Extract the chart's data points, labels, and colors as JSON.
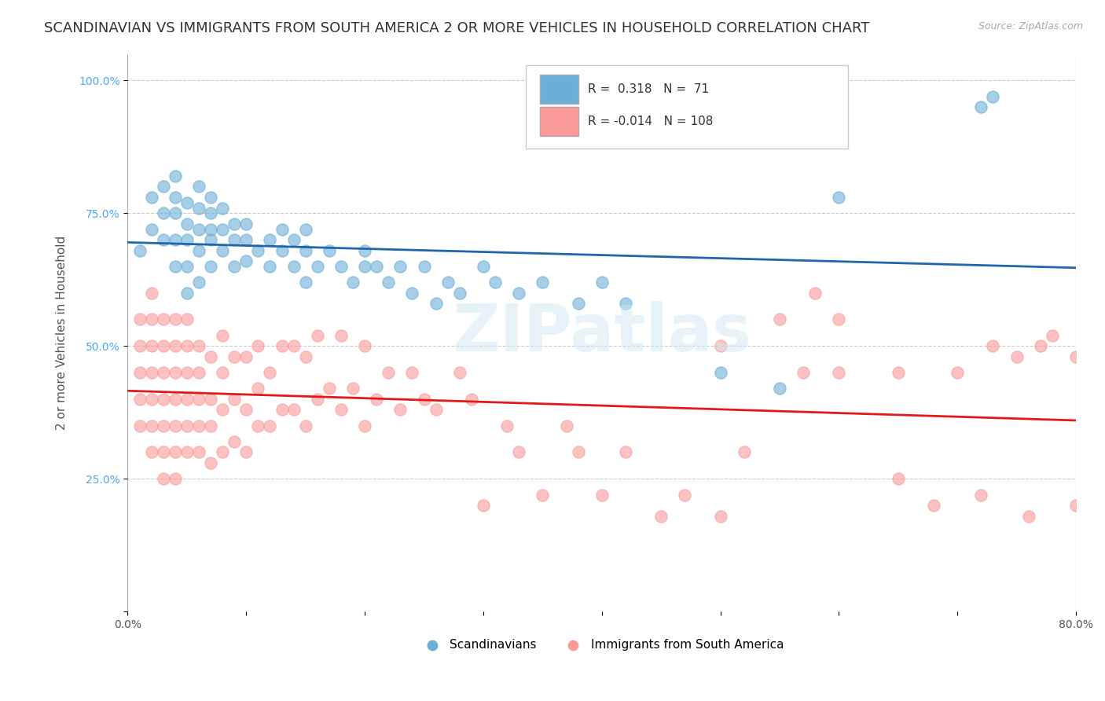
{
  "title": "SCANDINAVIAN VS IMMIGRANTS FROM SOUTH AMERICA 2 OR MORE VEHICLES IN HOUSEHOLD CORRELATION CHART",
  "source": "Source: ZipAtlas.com",
  "ylabel": "2 or more Vehicles in Household",
  "x_min": 0.0,
  "x_max": 0.8,
  "y_min": 0.0,
  "y_max": 1.05,
  "y_ticks": [
    0.0,
    0.25,
    0.5,
    0.75,
    1.0
  ],
  "y_tick_labels": [
    "",
    "25.0%",
    "50.0%",
    "75.0%",
    "100.0%"
  ],
  "x_ticks": [
    0.0,
    0.1,
    0.2,
    0.3,
    0.4,
    0.5,
    0.6,
    0.7,
    0.8
  ],
  "x_tick_labels": [
    "0.0%",
    "",
    "",
    "",
    "",
    "",
    "",
    "",
    "80.0%"
  ],
  "blue_color": "#6baed6",
  "pink_color": "#fb9a99",
  "blue_line_color": "#2166ac",
  "pink_line_color": "#e31a1c",
  "R_blue": 0.318,
  "N_blue": 71,
  "R_pink": -0.014,
  "N_pink": 108,
  "legend_label_blue": "Scandinavians",
  "legend_label_pink": "Immigrants from South America",
  "watermark": "ZIPatlas",
  "background_color": "#ffffff",
  "grid_color": "#cccccc",
  "title_fontsize": 13,
  "axis_label_fontsize": 11,
  "tick_fontsize": 10,
  "blue_scatter": {
    "x": [
      0.01,
      0.02,
      0.02,
      0.03,
      0.03,
      0.03,
      0.04,
      0.04,
      0.04,
      0.04,
      0.04,
      0.05,
      0.05,
      0.05,
      0.05,
      0.05,
      0.06,
      0.06,
      0.06,
      0.06,
      0.06,
      0.07,
      0.07,
      0.07,
      0.07,
      0.07,
      0.08,
      0.08,
      0.08,
      0.09,
      0.09,
      0.09,
      0.1,
      0.1,
      0.1,
      0.11,
      0.12,
      0.12,
      0.13,
      0.13,
      0.14,
      0.14,
      0.15,
      0.15,
      0.15,
      0.16,
      0.17,
      0.18,
      0.19,
      0.2,
      0.2,
      0.21,
      0.22,
      0.23,
      0.24,
      0.25,
      0.26,
      0.27,
      0.28,
      0.3,
      0.31,
      0.33,
      0.35,
      0.38,
      0.4,
      0.42,
      0.5,
      0.55,
      0.6,
      0.72,
      0.73
    ],
    "y": [
      0.68,
      0.72,
      0.78,
      0.7,
      0.75,
      0.8,
      0.65,
      0.7,
      0.75,
      0.78,
      0.82,
      0.6,
      0.65,
      0.7,
      0.73,
      0.77,
      0.62,
      0.68,
      0.72,
      0.76,
      0.8,
      0.65,
      0.7,
      0.72,
      0.75,
      0.78,
      0.68,
      0.72,
      0.76,
      0.65,
      0.7,
      0.73,
      0.66,
      0.7,
      0.73,
      0.68,
      0.65,
      0.7,
      0.68,
      0.72,
      0.65,
      0.7,
      0.62,
      0.68,
      0.72,
      0.65,
      0.68,
      0.65,
      0.62,
      0.65,
      0.68,
      0.65,
      0.62,
      0.65,
      0.6,
      0.65,
      0.58,
      0.62,
      0.6,
      0.65,
      0.62,
      0.6,
      0.62,
      0.58,
      0.62,
      0.58,
      0.45,
      0.42,
      0.78,
      0.95,
      0.97
    ]
  },
  "pink_scatter": {
    "x": [
      0.01,
      0.01,
      0.01,
      0.01,
      0.01,
      0.02,
      0.02,
      0.02,
      0.02,
      0.02,
      0.02,
      0.02,
      0.03,
      0.03,
      0.03,
      0.03,
      0.03,
      0.03,
      0.03,
      0.04,
      0.04,
      0.04,
      0.04,
      0.04,
      0.04,
      0.04,
      0.05,
      0.05,
      0.05,
      0.05,
      0.05,
      0.05,
      0.06,
      0.06,
      0.06,
      0.06,
      0.06,
      0.07,
      0.07,
      0.07,
      0.07,
      0.08,
      0.08,
      0.08,
      0.08,
      0.09,
      0.09,
      0.09,
      0.1,
      0.1,
      0.1,
      0.11,
      0.11,
      0.11,
      0.12,
      0.12,
      0.13,
      0.13,
      0.14,
      0.14,
      0.15,
      0.15,
      0.16,
      0.16,
      0.17,
      0.18,
      0.18,
      0.19,
      0.2,
      0.2,
      0.21,
      0.22,
      0.23,
      0.24,
      0.25,
      0.26,
      0.28,
      0.29,
      0.3,
      0.32,
      0.33,
      0.35,
      0.37,
      0.38,
      0.4,
      0.42,
      0.45,
      0.47,
      0.5,
      0.5,
      0.52,
      0.55,
      0.57,
      0.58,
      0.6,
      0.6,
      0.65,
      0.65,
      0.68,
      0.7,
      0.72,
      0.73,
      0.75,
      0.76,
      0.77,
      0.78,
      0.8,
      0.8
    ],
    "y": [
      0.35,
      0.4,
      0.45,
      0.5,
      0.55,
      0.3,
      0.35,
      0.4,
      0.45,
      0.5,
      0.55,
      0.6,
      0.25,
      0.3,
      0.35,
      0.4,
      0.45,
      0.5,
      0.55,
      0.25,
      0.3,
      0.35,
      0.4,
      0.45,
      0.5,
      0.55,
      0.3,
      0.35,
      0.4,
      0.45,
      0.5,
      0.55,
      0.3,
      0.35,
      0.4,
      0.45,
      0.5,
      0.28,
      0.35,
      0.4,
      0.48,
      0.3,
      0.38,
      0.45,
      0.52,
      0.32,
      0.4,
      0.48,
      0.3,
      0.38,
      0.48,
      0.35,
      0.42,
      0.5,
      0.35,
      0.45,
      0.38,
      0.5,
      0.38,
      0.5,
      0.35,
      0.48,
      0.4,
      0.52,
      0.42,
      0.38,
      0.52,
      0.42,
      0.35,
      0.5,
      0.4,
      0.45,
      0.38,
      0.45,
      0.4,
      0.38,
      0.45,
      0.4,
      0.2,
      0.35,
      0.3,
      0.22,
      0.35,
      0.3,
      0.22,
      0.3,
      0.18,
      0.22,
      0.18,
      0.5,
      0.3,
      0.55,
      0.45,
      0.6,
      0.45,
      0.55,
      0.25,
      0.45,
      0.2,
      0.45,
      0.22,
      0.5,
      0.48,
      0.18,
      0.5,
      0.52,
      0.2,
      0.48
    ]
  }
}
